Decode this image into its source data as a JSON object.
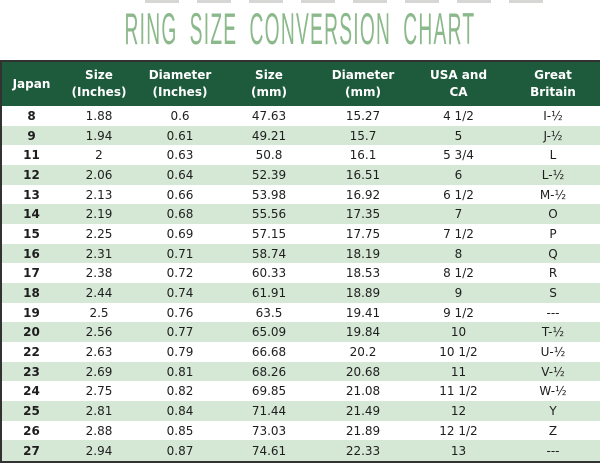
{
  "title": "RING SIZE CONVERSION CHART",
  "colors": {
    "header_background": "#1e5b3c",
    "header_text": "#ffffff",
    "stripe_row_background": "#d5e7d5",
    "title_text": "#8bb98b",
    "table_border": "#323232",
    "body_text": "#1e1e1e"
  },
  "chart_data": {
    "type": "table",
    "title": "RING SIZE CONVERSION CHART",
    "columns": [
      {
        "key": "japan",
        "label": "Japan"
      },
      {
        "key": "size-inches",
        "label": "Size\n(Inches)"
      },
      {
        "key": "diameter-inches",
        "label": "Diameter\n(Inches)"
      },
      {
        "key": "size-mm",
        "label": "Size\n(mm)"
      },
      {
        "key": "diameter-mm",
        "label": "Diameter\n(mm)"
      },
      {
        "key": "usa-ca",
        "label": "USA and\nCA"
      },
      {
        "key": "great-britain",
        "label": "Great\nBritain"
      }
    ],
    "rows": [
      [
        "8",
        "1.88",
        "0.6",
        "47.63",
        "15.27",
        "4 1/2",
        "I-½"
      ],
      [
        "9",
        "1.94",
        "0.61",
        "49.21",
        "15.7",
        "5",
        "J-½"
      ],
      [
        "11",
        "2",
        "0.63",
        "50.8",
        "16.1",
        "5 3/4",
        "L"
      ],
      [
        "12",
        "2.06",
        "0.64",
        "52.39",
        "16.51",
        "6",
        "L-½"
      ],
      [
        "13",
        "2.13",
        "0.66",
        "53.98",
        "16.92",
        "6 1/2",
        "M-½"
      ],
      [
        "14",
        "2.19",
        "0.68",
        "55.56",
        "17.35",
        "7",
        "O"
      ],
      [
        "15",
        "2.25",
        "0.69",
        "57.15",
        "17.75",
        "7 1/2",
        "P"
      ],
      [
        "16",
        "2.31",
        "0.71",
        "58.74",
        "18.19",
        "8",
        "Q"
      ],
      [
        "17",
        "2.38",
        "0.72",
        "60.33",
        "18.53",
        "8 1/2",
        "R"
      ],
      [
        "18",
        "2.44",
        "0.74",
        "61.91",
        "18.89",
        "9",
        "S"
      ],
      [
        "19",
        "2.5",
        "0.76",
        "63.5",
        "19.41",
        "9 1/2",
        "---"
      ],
      [
        "20",
        "2.56",
        "0.77",
        "65.09",
        "19.84",
        "10",
        "T-½"
      ],
      [
        "22",
        "2.63",
        "0.79",
        "66.68",
        "20.2",
        "10 1/2",
        "U-½"
      ],
      [
        "23",
        "2.69",
        "0.81",
        "68.26",
        "20.68",
        "11",
        "V-½"
      ],
      [
        "24",
        "2.75",
        "0.82",
        "69.85",
        "21.08",
        "11 1/2",
        "W-½"
      ],
      [
        "25",
        "2.81",
        "0.84",
        "71.44",
        "21.49",
        "12",
        "Y"
      ],
      [
        "26",
        "2.88",
        "0.85",
        "73.03",
        "21.89",
        "12 1/2",
        "Z"
      ],
      [
        "27",
        "2.94",
        "0.87",
        "74.61",
        "22.33",
        "13",
        "---"
      ]
    ]
  }
}
